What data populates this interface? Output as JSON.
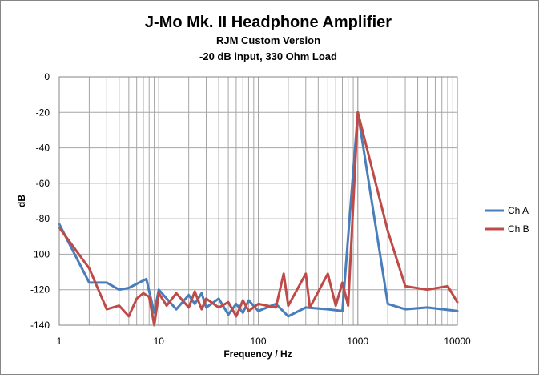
{
  "chart_data": {
    "type": "line",
    "title": "J-Mo Mk. II Headphone Amplifier",
    "subtitle": [
      "RJM Custom Version",
      "-20 dB input, 330 Ohm Load"
    ],
    "xlabel": "Frequency / Hz",
    "ylabel": "dB",
    "xscale": "log",
    "xlim": [
      1,
      10000
    ],
    "ylim": [
      -140,
      0
    ],
    "x_ticks": [
      "1",
      "10",
      "100",
      "1000",
      "10000"
    ],
    "y_ticks": [
      "0",
      "-20",
      "-40",
      "-60",
      "-80",
      "-100",
      "-120",
      "-140"
    ],
    "grid": true,
    "legend_position": "right",
    "series": [
      {
        "name": "Ch A",
        "color": "#4a7ebb",
        "x": [
          1,
          2,
          3,
          4,
          5,
          7.5,
          9,
          10,
          12,
          15,
          20,
          23,
          27,
          30,
          40,
          50,
          60,
          70,
          80,
          100,
          150,
          200,
          300,
          500,
          700,
          1000,
          2000,
          3000,
          5000,
          10000
        ],
        "y": [
          -83,
          -116,
          -116,
          -120,
          -119,
          -114,
          -133,
          -120,
          -125,
          -131,
          -123,
          -128,
          -122,
          -130,
          -125,
          -134,
          -128,
          -133,
          -126,
          -132,
          -128,
          -135,
          -130,
          -131,
          -132,
          -20,
          -128,
          -131,
          -130,
          -132
        ]
      },
      {
        "name": "Ch B",
        "color": "#be4b48",
        "x": [
          1,
          2,
          3,
          4,
          5,
          6,
          7,
          8,
          9,
          10,
          12,
          15,
          20,
          23,
          27,
          30,
          40,
          50,
          60,
          70,
          80,
          100,
          150,
          180,
          200,
          300,
          330,
          500,
          600,
          700,
          800,
          1000,
          2000,
          3000,
          5000,
          8000,
          10000
        ],
        "y": [
          -85,
          -108,
          -131,
          -129,
          -135,
          -125,
          -122,
          -124,
          -140,
          -122,
          -129,
          -122,
          -130,
          -121,
          -131,
          -125,
          -130,
          -127,
          -135,
          -126,
          -132,
          -128,
          -130,
          -111,
          -129,
          -111,
          -130,
          -111,
          -129,
          -116,
          -129,
          -20,
          -87,
          -118,
          -120,
          -118,
          -127
        ]
      }
    ]
  }
}
